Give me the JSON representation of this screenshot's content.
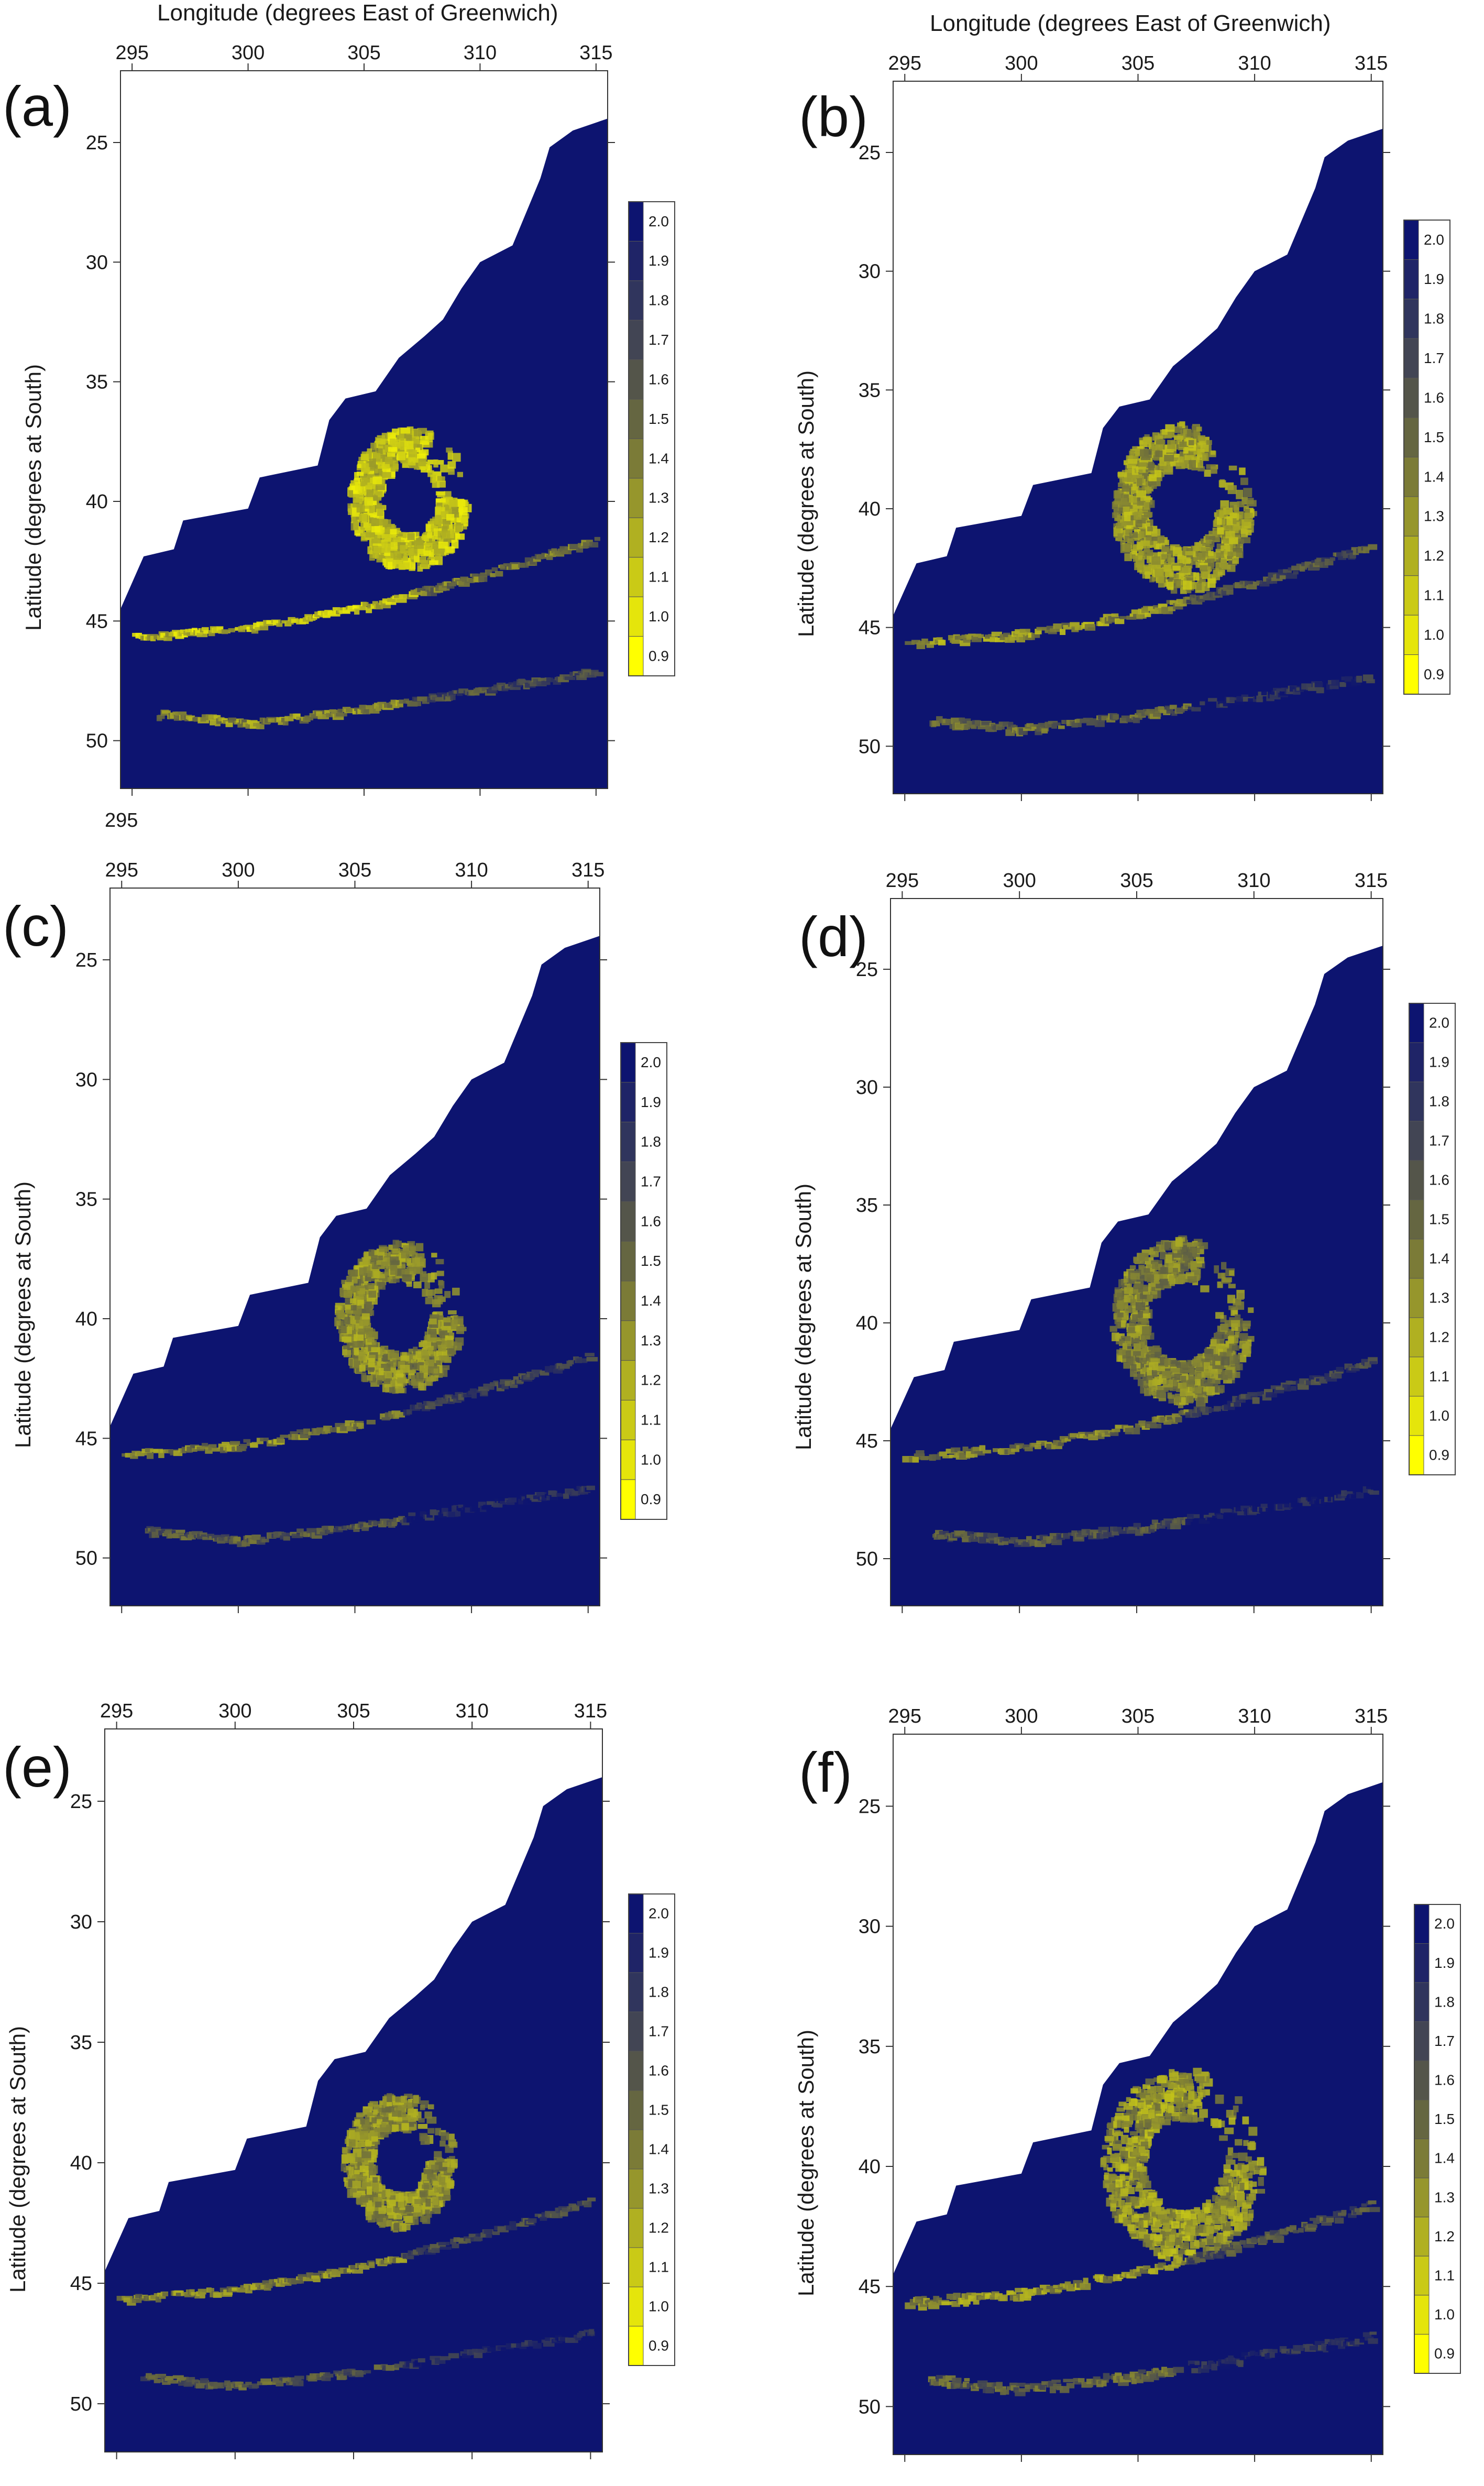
{
  "figure": {
    "panels": [
      {
        "label": "(a)",
        "xlabel": "Longitude (degrees East of Greenwich)",
        "ylabel": "Latitude (degrees at South)",
        "extra_tick": "295",
        "intensity": 1.0,
        "spread": 0.85
      },
      {
        "label": "(b)",
        "xlabel": "Longitude (degrees East of Greenwich)",
        "ylabel": "Latitude (degrees at South)",
        "intensity": 0.72,
        "spread": 1.0
      },
      {
        "label": "(c)",
        "xlabel": "",
        "ylabel": "Latitude (degrees at South)",
        "intensity": 0.6,
        "spread": 0.9
      },
      {
        "label": "(d)",
        "xlabel": "",
        "ylabel": "Latitude (degrees at South)",
        "intensity": 0.55,
        "spread": 1.0
      },
      {
        "label": "(e)",
        "xlabel": "",
        "ylabel": "Latitude (degrees at South)",
        "intensity": 0.62,
        "spread": 0.8
      },
      {
        "label": "(f)",
        "xlabel": "",
        "ylabel": "Latitude (degrees at South)",
        "intensity": 0.7,
        "spread": 1.15
      }
    ]
  },
  "chart_data": {
    "type": "heatmap",
    "x_ticks": [
      "295",
      "300",
      "305",
      "310",
      "315"
    ],
    "y_ticks": [
      "25",
      "30",
      "35",
      "40",
      "45",
      "50"
    ],
    "xlim": [
      294.5,
      315.5
    ],
    "ylim": [
      52,
      22
    ],
    "colorbar": {
      "labels": [
        "2.0",
        "1.9",
        "1.8",
        "1.7",
        "1.6",
        "1.5",
        "1.4",
        "1.3",
        "1.2",
        "1.1",
        "1.0",
        "0.9"
      ],
      "min": 0.9,
      "max": 2.0,
      "low_color": "#ffff00",
      "high_color": "#0d1470"
    },
    "ocean_color": "#0d1470",
    "features": {
      "eddy_center": [
        306.8,
        39.8
      ],
      "front_north": [
        [
          295,
          45.6
        ],
        [
          300,
          45.2
        ],
        [
          305,
          44.3
        ],
        [
          310,
          43.0
        ],
        [
          315,
          41.5
        ]
      ],
      "front_south": [
        [
          296,
          48.8
        ],
        [
          300,
          49.2
        ],
        [
          305,
          48.6
        ],
        [
          310,
          47.8
        ],
        [
          315,
          47.0
        ]
      ]
    }
  }
}
